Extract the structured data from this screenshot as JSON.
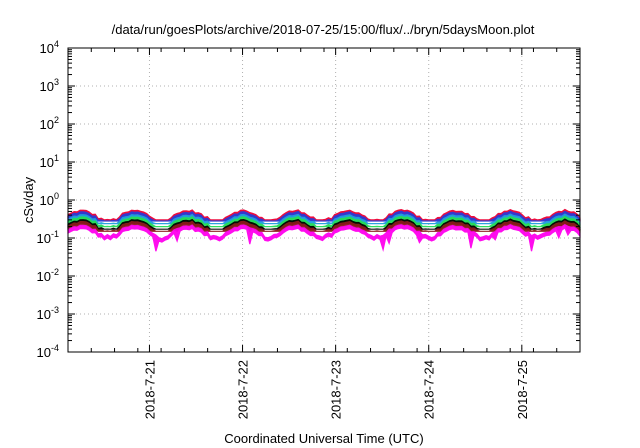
{
  "chart_data": {
    "type": "line",
    "title": "/data/run/goesPlots/archive/2018-07-25/15:00/flux/../bryn/5daysMoon.plot",
    "xlabel": "Coordinated Universal Time (UTC)",
    "ylabel": "cSv/day",
    "yscale": "log",
    "ylim": [
      "1e-4",
      "1e4"
    ],
    "xlim": [
      "2018-07-20 03:00",
      "2018-07-25 15:00"
    ],
    "grid": true,
    "x_ticks": [
      "2018-7-21",
      "2018-7-22",
      "2018-7-23",
      "2018-7-24",
      "2018-7-25"
    ],
    "y_ticks": [
      {
        "base": "10",
        "exp": "-4"
      },
      {
        "base": "10",
        "exp": "-3"
      },
      {
        "base": "10",
        "exp": "-2"
      },
      {
        "base": "10",
        "exp": "-1"
      },
      {
        "base": "10",
        "exp": "0"
      },
      {
        "base": "10",
        "exp": "1"
      },
      {
        "base": "10",
        "exp": "2"
      },
      {
        "base": "10",
        "exp": "3"
      },
      {
        "base": "10",
        "exp": "4"
      }
    ],
    "series": [
      {
        "color": "#ee0033",
        "typical": 0.5,
        "range": [
          0.3,
          0.65
        ]
      },
      {
        "color": "#2a3bd6",
        "typical": 0.45,
        "range": [
          0.28,
          0.6
        ]
      },
      {
        "color": "#1f9fdc",
        "typical": 0.38,
        "range": [
          0.24,
          0.5
        ]
      },
      {
        "color": "#22dd55",
        "typical": 0.33,
        "range": [
          0.2,
          0.45
        ]
      },
      {
        "color": "#000000",
        "typical": 0.28,
        "range": [
          0.17,
          0.36
        ]
      },
      {
        "color": "#8b1a1a",
        "typical": 0.25,
        "range": [
          0.15,
          0.32
        ]
      },
      {
        "color": "#ff00ee",
        "typical": 0.2,
        "range": [
          0.045,
          0.28
        ]
      }
    ]
  }
}
